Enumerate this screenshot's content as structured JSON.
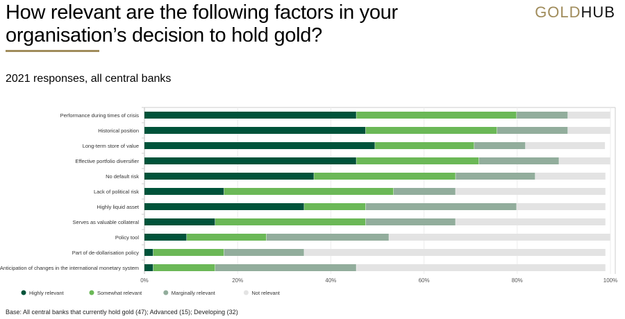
{
  "header": {
    "title": "How relevant are the following factors in your organisation’s decision to hold gold?",
    "logo_gold": "GOLD",
    "logo_hub": "HUB",
    "subtitle": "2021 responses, all central banks"
  },
  "footnote": "Base: All central banks that currently hold gold (47); Advanced (15); Developing (32)",
  "chart_data": {
    "type": "bar",
    "orientation": "horizontal-stacked",
    "title": "2021 responses, all central banks",
    "categories": [
      "Performance during times of crisis",
      "Historical position",
      "Long-term store of value",
      "Effective portfolio diversifier",
      "No default risk",
      "Lack of political risk",
      "Highly liquid asset",
      "Serves as valuable collateral",
      "Policy tool",
      "Part of de-dollarisation policy",
      "Anticipation of changes in the international monetary system"
    ],
    "series": [
      {
        "name": "Highly relevant",
        "color": "#00533a",
        "values": [
          45.5,
          47.5,
          49.5,
          45.5,
          36.4,
          17.1,
          34.3,
          15.2,
          9.1,
          1.9,
          1.9
        ]
      },
      {
        "name": "Somewhat relevant",
        "color": "#6bb857",
        "values": [
          34.4,
          28.2,
          21.3,
          26.3,
          30.4,
          36.4,
          13.2,
          32.3,
          17.1,
          15.2,
          13.3
        ]
      },
      {
        "name": "Marginally relevant",
        "color": "#92ad9c",
        "values": [
          11.0,
          15.2,
          11.0,
          17.2,
          17.1,
          13.3,
          32.4,
          19.3,
          26.3,
          17.2,
          30.3
        ]
      },
      {
        "name": "Not relevant",
        "color": "#e3e3e3",
        "values": [
          9.1,
          9.1,
          17.1,
          11.0,
          15.1,
          32.2,
          19.1,
          32.2,
          47.5,
          64.7,
          53.5
        ]
      }
    ],
    "xticks": [
      "0%",
      "20%",
      "40%",
      "60%",
      "80%",
      "100%"
    ],
    "xlim": [
      0,
      100
    ],
    "legend": "bottom-left",
    "grid": true
  }
}
